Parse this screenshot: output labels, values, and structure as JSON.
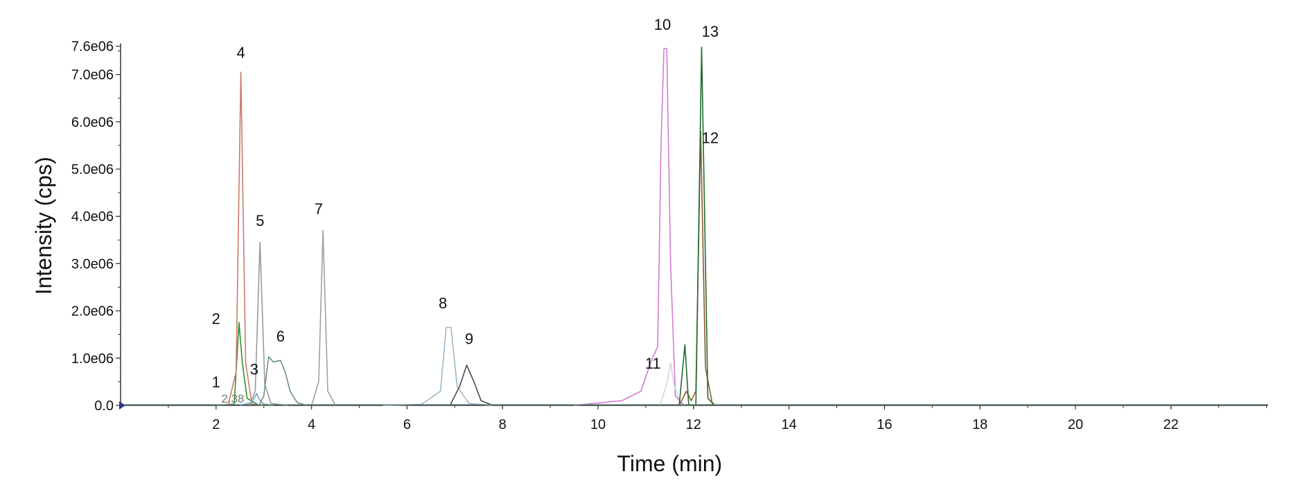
{
  "chart_data": {
    "type": "line",
    "title": "",
    "xlabel": "Time (min)",
    "ylabel": "Intensity (cps)",
    "xlim": [
      0,
      24
    ],
    "ylim": [
      0,
      7600000
    ],
    "x_ticks": [
      2,
      4,
      6,
      8,
      10,
      12,
      14,
      16,
      18,
      20,
      22
    ],
    "y_ticks": [
      0,
      1000000,
      2000000,
      3000000,
      4000000,
      5000000,
      6000000,
      7000000,
      7600000
    ],
    "y_tick_labels": [
      "0.0",
      "1.0e06",
      "2.0e06",
      "3.0e06",
      "4.0e06",
      "5.0e06",
      "6.0e06",
      "7.0e06",
      "7.6e06"
    ],
    "grid": false,
    "retention_annotation": "2.38",
    "series": [
      {
        "color": "#2f8f2f",
        "x": [
          2.0,
          2.38,
          2.48,
          2.55,
          2.65,
          2.9,
          3.2
        ],
        "y": [
          0,
          30000,
          1750000,
          900000,
          150000,
          0,
          0
        ]
      },
      {
        "color": "#c97a6a",
        "x": [
          2.25,
          2.42,
          2.52,
          2.62,
          2.75,
          3.0
        ],
        "y": [
          0,
          700000,
          7050000,
          900000,
          30000,
          0
        ]
      },
      {
        "color": "#6fa3c9",
        "x": [
          2.5,
          2.75,
          2.85,
          2.92,
          3.0,
          3.2
        ],
        "y": [
          0,
          60000,
          250000,
          100000,
          30000,
          0
        ]
      },
      {
        "color": "#9a9a9a",
        "x": [
          2.7,
          2.82,
          2.92,
          3.02,
          3.15,
          3.5
        ],
        "y": [
          0,
          300000,
          3450000,
          450000,
          40000,
          0
        ]
      },
      {
        "color": "#6b8e86",
        "x": [
          2.9,
          3.0,
          3.1,
          3.2,
          3.35,
          3.45,
          3.55,
          3.7,
          3.9
        ],
        "y": [
          0,
          200000,
          1030000,
          920000,
          950000,
          700000,
          300000,
          60000,
          0
        ]
      },
      {
        "color": "#a0a0a0",
        "x": [
          4.0,
          4.15,
          4.24,
          4.34,
          4.5
        ],
        "y": [
          0,
          500000,
          3700000,
          300000,
          0
        ]
      },
      {
        "color": "#9bb8c8",
        "x": [
          5.5,
          6.3,
          6.7,
          6.82,
          6.92,
          7.05,
          7.3,
          7.8
        ],
        "y": [
          0,
          20000,
          300000,
          1650000,
          1650000,
          400000,
          40000,
          0
        ]
      },
      {
        "color": "#4a4a4a",
        "x": [
          6.9,
          7.1,
          7.25,
          7.4,
          7.55,
          7.8
        ],
        "y": [
          0,
          400000,
          850000,
          500000,
          100000,
          0
        ]
      },
      {
        "color": "#d37ad3",
        "x": [
          9.5,
          10.0,
          10.5,
          10.9,
          11.1,
          11.25,
          11.32,
          11.38,
          11.44,
          11.52,
          11.62,
          11.8
        ],
        "y": [
          0,
          50000,
          100000,
          300000,
          900000,
          1250000,
          5500000,
          7550000,
          7550000,
          3000000,
          200000,
          0
        ]
      },
      {
        "color": "#c8d8e8",
        "x": [
          11.3,
          11.45,
          11.52,
          11.6,
          11.75
        ],
        "y": [
          0,
          500000,
          900000,
          400000,
          0
        ]
      },
      {
        "color": "#8b5a2b",
        "x": [
          11.7,
          11.85,
          11.95,
          12.05,
          12.15,
          12.25,
          12.4
        ],
        "y": [
          0,
          300000,
          100000,
          300000,
          5800000,
          800000,
          0
        ]
      },
      {
        "color": "#1e6b2e",
        "x": [
          11.7,
          11.82,
          11.9,
          12.05,
          12.17,
          12.3,
          12.45
        ],
        "y": [
          0,
          1280000,
          0,
          0,
          7580000,
          150000,
          0
        ]
      }
    ],
    "annotations": [
      {
        "text": "1",
        "x": 2.0,
        "y": 380000
      },
      {
        "text": "2",
        "x": 2.0,
        "y": 1720000
      },
      {
        "text": "3",
        "x": 2.8,
        "y": 650000
      },
      {
        "text": "4",
        "x": 2.52,
        "y": 7350000
      },
      {
        "text": "5",
        "x": 2.92,
        "y": 3800000
      },
      {
        "text": "6",
        "x": 3.35,
        "y": 1350000
      },
      {
        "text": "7",
        "x": 4.15,
        "y": 4050000
      },
      {
        "text": "8",
        "x": 6.75,
        "y": 2050000
      },
      {
        "text": "9",
        "x": 7.3,
        "y": 1300000
      },
      {
        "text": "10",
        "x": 11.35,
        "y": 7950000
      },
      {
        "text": "11",
        "x": 11.15,
        "y": 780000
      },
      {
        "text": "12",
        "x": 12.35,
        "y": 5550000
      },
      {
        "text": "13",
        "x": 12.35,
        "y": 7800000
      }
    ]
  }
}
